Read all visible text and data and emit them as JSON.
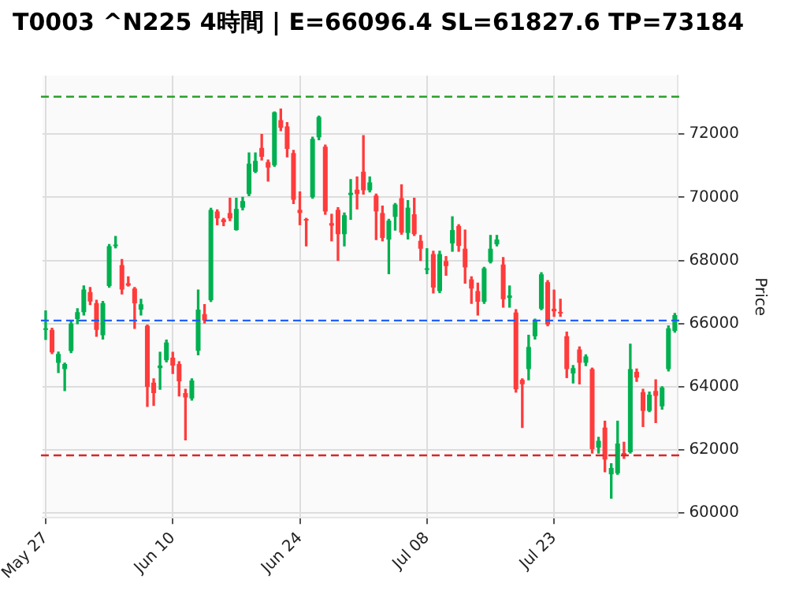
{
  "chart_data": {
    "type": "candlestick",
    "title": "T0003 ^N225 4時間 | E=66096.4 SL=61827.6 TP=73184",
    "ylabel": "Price",
    "categories": [
      "May 27",
      null,
      null,
      null,
      null,
      null,
      null,
      null,
      null,
      null,
      null,
      null,
      null,
      null,
      null,
      null,
      null,
      null,
      null,
      null,
      "Jun 10",
      null,
      null,
      null,
      null,
      null,
      null,
      null,
      null,
      null,
      null,
      null,
      null,
      null,
      null,
      null,
      null,
      null,
      null,
      null,
      "Jun 24",
      null,
      null,
      null,
      null,
      null,
      null,
      null,
      null,
      null,
      null,
      null,
      null,
      null,
      null,
      null,
      null,
      null,
      null,
      null,
      "Jul 08",
      null,
      null,
      null,
      null,
      null,
      null,
      null,
      null,
      null,
      null,
      null,
      null,
      null,
      null,
      null,
      null,
      null,
      null,
      null,
      "Jul 23",
      null,
      null,
      null,
      null,
      null,
      null,
      null,
      null,
      null,
      null,
      null,
      null,
      null,
      null,
      null,
      null,
      null,
      null,
      null
    ],
    "ohlc": [
      [
        65800,
        66400,
        65500,
        65850
      ],
      [
        65800,
        65850,
        65050,
        65090
      ],
      [
        64760,
        65100,
        64450,
        65040
      ],
      [
        64560,
        64750,
        63880,
        64720
      ],
      [
        65130,
        66050,
        65080,
        66000
      ],
      [
        66140,
        66470,
        66000,
        66360
      ],
      [
        66360,
        67190,
        66270,
        67080
      ],
      [
        67000,
        67140,
        66600,
        66700
      ],
      [
        66650,
        66740,
        65600,
        65800
      ],
      [
        65630,
        66700,
        65510,
        66650
      ],
      [
        67190,
        68500,
        67150,
        68450
      ],
      [
        68450,
        68760,
        68400,
        68500
      ],
      [
        67850,
        68030,
        66940,
        67080
      ],
      [
        67280,
        67480,
        67190,
        67200
      ],
      [
        67110,
        67140,
        65850,
        66640
      ],
      [
        66440,
        66770,
        66270,
        66610
      ],
      [
        65930,
        65950,
        63380,
        64000
      ],
      [
        64130,
        64250,
        63410,
        63800
      ],
      [
        64590,
        65090,
        63920,
        64670
      ],
      [
        64840,
        65480,
        64790,
        65400
      ],
      [
        64920,
        65090,
        64420,
        64670
      ],
      [
        64720,
        64790,
        63710,
        64170
      ],
      [
        63800,
        63920,
        62320,
        63660
      ],
      [
        63630,
        64250,
        63580,
        64200
      ],
      [
        65140,
        67060,
        65010,
        66440
      ],
      [
        66300,
        66600,
        66020,
        66100
      ],
      [
        66740,
        69650,
        66700,
        69600
      ],
      [
        69550,
        69600,
        69130,
        69330
      ],
      [
        69300,
        69330,
        69100,
        69210
      ],
      [
        69500,
        69970,
        69260,
        69330
      ],
      [
        68960,
        69970,
        68960,
        69630
      ],
      [
        69670,
        70000,
        69600,
        69880
      ],
      [
        70100,
        71400,
        70050,
        71060
      ],
      [
        70810,
        71400,
        70780,
        71150
      ],
      [
        71560,
        71990,
        71180,
        71280
      ],
      [
        71110,
        71180,
        70510,
        70940
      ],
      [
        71010,
        72700,
        70980,
        72690
      ],
      [
        72440,
        72790,
        72110,
        72200
      ],
      [
        72240,
        72360,
        71280,
        71530
      ],
      [
        71400,
        71480,
        69800,
        69920
      ],
      [
        69600,
        70170,
        69130,
        69500
      ],
      [
        69300,
        69330,
        68460,
        69260
      ],
      [
        70000,
        71900,
        69970,
        71850
      ],
      [
        71900,
        72570,
        71820,
        72540
      ],
      [
        71600,
        71650,
        69460,
        69550
      ],
      [
        69180,
        69460,
        68620,
        69100
      ],
      [
        69600,
        69670,
        68000,
        68830
      ],
      [
        68830,
        69500,
        68460,
        69430
      ],
      [
        70070,
        70560,
        69300,
        70140
      ],
      [
        70240,
        70640,
        69630,
        70100
      ],
      [
        70810,
        71950,
        70100,
        70220
      ],
      [
        70220,
        70640,
        70170,
        70470
      ],
      [
        70050,
        70100,
        68660,
        69550
      ],
      [
        69500,
        69720,
        68620,
        68710
      ],
      [
        68660,
        69300,
        67580,
        69260
      ],
      [
        69380,
        69800,
        68960,
        69770
      ],
      [
        69970,
        70390,
        68830,
        68880
      ],
      [
        68870,
        69890,
        68680,
        69670
      ],
      [
        69460,
        69970,
        68790,
        68830
      ],
      [
        68620,
        68790,
        68000,
        68370
      ],
      [
        67700,
        68370,
        67580,
        67750
      ],
      [
        68200,
        68290,
        66970,
        67140
      ],
      [
        67030,
        68290,
        66980,
        68200
      ],
      [
        67980,
        68120,
        67530,
        67820
      ],
      [
        68540,
        69380,
        68290,
        68960
      ],
      [
        69090,
        69130,
        68290,
        68460
      ],
      [
        68370,
        68960,
        67280,
        67780
      ],
      [
        67400,
        67480,
        66640,
        67110
      ],
      [
        67030,
        67280,
        66270,
        66690
      ],
      [
        66690,
        67780,
        66640,
        67750
      ],
      [
        67950,
        68790,
        67920,
        68370
      ],
      [
        68510,
        68790,
        68460,
        68660
      ],
      [
        67870,
        68090,
        66520,
        66770
      ],
      [
        66810,
        67190,
        66520,
        66890
      ],
      [
        66350,
        66440,
        63830,
        63920
      ],
      [
        64220,
        64250,
        62710,
        64080
      ],
      [
        64560,
        65630,
        64220,
        65260
      ],
      [
        65600,
        66140,
        65510,
        66100
      ],
      [
        66470,
        67610,
        66440,
        67560
      ],
      [
        67310,
        67360,
        65930,
        65970
      ],
      [
        66470,
        67060,
        66230,
        66390
      ],
      [
        66350,
        66770,
        66230,
        66320
      ],
      [
        65600,
        65730,
        64290,
        64560
      ],
      [
        64420,
        64670,
        64120,
        64590
      ],
      [
        65180,
        65260,
        64090,
        64760
      ],
      [
        64760,
        65010,
        64670,
        64960
      ],
      [
        64560,
        64590,
        61900,
        62030
      ],
      [
        62070,
        62400,
        61900,
        62290
      ],
      [
        62710,
        62910,
        61310,
        61700
      ],
      [
        61230,
        61560,
        60470,
        61430
      ],
      [
        61260,
        62910,
        61230,
        62200
      ],
      [
        61900,
        62240,
        61730,
        61820
      ],
      [
        61930,
        65350,
        61900,
        64560
      ],
      [
        64470,
        64560,
        64170,
        64290
      ],
      [
        63830,
        63920,
        62740,
        63240
      ],
      [
        63240,
        63830,
        63210,
        63750
      ],
      [
        63870,
        64220,
        62870,
        63710
      ],
      [
        63380,
        64000,
        63290,
        63970
      ],
      [
        64560,
        65930,
        64500,
        65850
      ],
      [
        65770,
        66320,
        65730,
        66270
      ]
    ],
    "ylim": [
      59850,
      73850
    ],
    "yticks": [
      60000,
      62000,
      64000,
      66000,
      68000,
      70000,
      72000
    ],
    "ref_lines": [
      {
        "axis": "y",
        "value": 73184,
        "color": "#2ca02c",
        "line_style": "dashed"
      },
      {
        "axis": "y",
        "value": 66096.4,
        "color": "#1f5fff",
        "line_style": "dashed"
      },
      {
        "axis": "y",
        "value": 61827.6,
        "color": "#d62728",
        "line_style": "dashed"
      }
    ],
    "grid": true,
    "legend": false
  }
}
